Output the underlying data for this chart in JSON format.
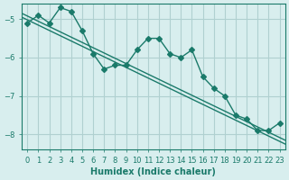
{
  "xlabel": "Humidex (Indice chaleur)",
  "ylabel": "",
  "background_color": "#d8eeee",
  "grid_color": "#b0d0d0",
  "line_color": "#1a7a6a",
  "xlim": [
    -0.5,
    23.5
  ],
  "ylim": [
    -8.4,
    -4.6
  ],
  "yticks": [
    -8,
    -7,
    -6,
    -5
  ],
  "xticks": [
    0,
    1,
    2,
    3,
    4,
    5,
    6,
    7,
    8,
    9,
    10,
    11,
    12,
    13,
    14,
    15,
    16,
    17,
    18,
    19,
    20,
    21,
    22,
    23
  ],
  "data_line": [
    -5.1,
    -4.9,
    -5.1,
    -4.7,
    -4.8,
    -5.3,
    -5.9,
    -6.3,
    -6.2,
    -6.2,
    -5.8,
    -5.5,
    -5.5,
    -5.9,
    -6.0,
    -5.8,
    -6.5,
    -6.8,
    -7.0,
    -7.5,
    -7.6,
    -7.9,
    -7.9,
    -7.7
  ],
  "trend_line": [
    [
      -0.5,
      -4.85
    ],
    [
      23.5,
      -8.15
    ]
  ],
  "trend_line2": [
    [
      -0.5,
      -4.95
    ],
    [
      23.5,
      -8.25
    ]
  ],
  "marker_style": "D",
  "marker_size": 3,
  "line_width": 1.0,
  "tick_fontsize": 6,
  "label_fontsize": 7
}
